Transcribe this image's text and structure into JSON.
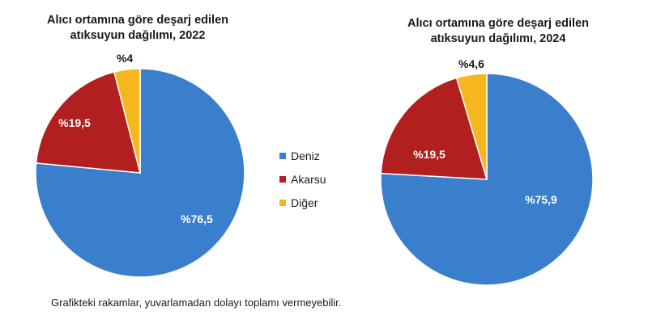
{
  "colors": {
    "deniz": "#3a7fcc",
    "akarsu": "#b21f1f",
    "diger": "#f5b71d"
  },
  "legend": [
    {
      "label": "Deniz",
      "color": "#3a7fcc"
    },
    {
      "label": "Akarsu",
      "color": "#b21f1f"
    },
    {
      "label": "Diğer",
      "color": "#f5b71d"
    }
  ],
  "footnote": "Grafikteki rakamlar, yuvarlamadan dolayı toplamı vermeyebilir.",
  "chart_data": [
    {
      "type": "pie",
      "title": "Alıcı ortamına göre deşarj edilen\natıksuyun dağılımı, 2022",
      "categories": [
        "Deniz",
        "Akarsu",
        "Diğer"
      ],
      "values": [
        76.5,
        19.5,
        4.0
      ],
      "labels": [
        "%76,5",
        "%19,5",
        "%4"
      ],
      "legend_position": "center"
    },
    {
      "type": "pie",
      "title": "Alıcı ortamına göre deşarj edilen\natıksuyun dağılımı, 2024",
      "categories": [
        "Deniz",
        "Akarsu",
        "Diğer"
      ],
      "values": [
        75.9,
        19.5,
        4.6
      ],
      "labels": [
        "%75,9",
        "%19,5",
        "%4,6"
      ],
      "legend_position": "center"
    }
  ]
}
